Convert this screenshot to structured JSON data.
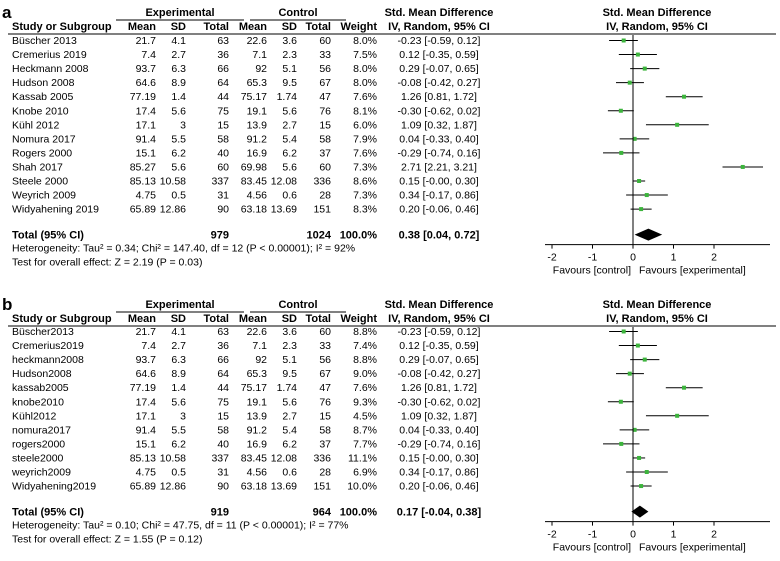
{
  "headers": {
    "group_exp": "Experimental",
    "group_ctl": "Control",
    "smd": "Std. Mean Difference",
    "method": "IV, Random, 95% CI",
    "study": "Study or Subgroup",
    "mean": "Mean",
    "sd": "SD",
    "total": "Total",
    "weight": "Weight"
  },
  "axis": {
    "ticks": [
      -2,
      -1,
      0,
      1,
      2
    ],
    "tick_labels": [
      "-2",
      "-1",
      "0",
      "1",
      "2"
    ],
    "xlim": [
      -2.6,
      2.6
    ],
    "favours_left": "Favours [control]",
    "favours_right": "Favours [experimental]"
  },
  "colors": {
    "marker": "#3cb43c",
    "line": "#000000",
    "diamond": "#000000"
  },
  "chart_data": [
    {
      "type": "forest",
      "panel": "a",
      "studies": [
        {
          "name": "Büscher 2013",
          "e_mean": "21.7",
          "e_sd": "4.1",
          "e_total": "63",
          "c_mean": "22.6",
          "c_sd": "3.6",
          "c_total": "60",
          "weight": "8.0%",
          "ci_text": "-0.23 [-0.59, 0.12]",
          "smd": -0.23,
          "lo": -0.59,
          "hi": 0.12
        },
        {
          "name": "Cremerius 2019",
          "e_mean": "7.4",
          "e_sd": "2.7",
          "e_total": "36",
          "c_mean": "7.1",
          "c_sd": "2.3",
          "c_total": "33",
          "weight": "7.5%",
          "ci_text": "0.12 [-0.35, 0.59]",
          "smd": 0.12,
          "lo": -0.35,
          "hi": 0.59
        },
        {
          "name": "Heckmann 2008",
          "e_mean": "93.7",
          "e_sd": "6.3",
          "e_total": "66",
          "c_mean": "92",
          "c_sd": "5.1",
          "c_total": "56",
          "weight": "8.0%",
          "ci_text": "0.29 [-0.07, 0.65]",
          "smd": 0.29,
          "lo": -0.07,
          "hi": 0.65
        },
        {
          "name": "Hudson 2008",
          "e_mean": "64.6",
          "e_sd": "8.9",
          "e_total": "64",
          "c_mean": "65.3",
          "c_sd": "9.5",
          "c_total": "67",
          "weight": "8.0%",
          "ci_text": "-0.08 [-0.42, 0.27]",
          "smd": -0.08,
          "lo": -0.42,
          "hi": 0.27
        },
        {
          "name": "Kassab 2005",
          "e_mean": "77.19",
          "e_sd": "1.4",
          "e_total": "44",
          "c_mean": "75.17",
          "c_sd": "1.74",
          "c_total": "47",
          "weight": "7.6%",
          "ci_text": "1.26 [0.81, 1.72]",
          "smd": 1.26,
          "lo": 0.81,
          "hi": 1.72
        },
        {
          "name": "Knobe 2010",
          "e_mean": "17.4",
          "e_sd": "5.6",
          "e_total": "75",
          "c_mean": "19.1",
          "c_sd": "5.6",
          "c_total": "76",
          "weight": "8.1%",
          "ci_text": "-0.30 [-0.62, 0.02]",
          "smd": -0.3,
          "lo": -0.62,
          "hi": 0.02
        },
        {
          "name": "Kühl 2012",
          "e_mean": "17.1",
          "e_sd": "3",
          "e_total": "15",
          "c_mean": "13.9",
          "c_sd": "2.7",
          "c_total": "15",
          "weight": "6.0%",
          "ci_text": "1.09 [0.32, 1.87]",
          "smd": 1.09,
          "lo": 0.32,
          "hi": 1.87
        },
        {
          "name": "Nomura 2017",
          "e_mean": "91.4",
          "e_sd": "5.5",
          "e_total": "58",
          "c_mean": "91.2",
          "c_sd": "5.4",
          "c_total": "58",
          "weight": "7.9%",
          "ci_text": "0.04 [-0.33, 0.40]",
          "smd": 0.04,
          "lo": -0.33,
          "hi": 0.4
        },
        {
          "name": "Rogers 2000",
          "e_mean": "15.1",
          "e_sd": "6.2",
          "e_total": "40",
          "c_mean": "16.9",
          "c_sd": "6.2",
          "c_total": "37",
          "weight": "7.6%",
          "ci_text": "-0.29 [-0.74, 0.16]",
          "smd": -0.29,
          "lo": -0.74,
          "hi": 0.16
        },
        {
          "name": "Shah 2017",
          "e_mean": "85.27",
          "e_sd": "5.6",
          "e_total": "60",
          "c_mean": "69.98",
          "c_sd": "5.6",
          "c_total": "60",
          "weight": "7.3%",
          "ci_text": "2.71 [2.21, 3.21]",
          "smd": 2.71,
          "lo": 2.21,
          "hi": 3.21
        },
        {
          "name": "Steele 2000",
          "e_mean": "85.13",
          "e_sd": "10.58",
          "e_total": "337",
          "c_mean": "83.45",
          "c_sd": "12.08",
          "c_total": "336",
          "weight": "8.6%",
          "ci_text": "0.15 [-0.00, 0.30]",
          "smd": 0.15,
          "lo": -0.0,
          "hi": 0.3
        },
        {
          "name": "Weyrich 2009",
          "e_mean": "4.75",
          "e_sd": "0.5",
          "e_total": "31",
          "c_mean": "4.56",
          "c_sd": "0.6",
          "c_total": "28",
          "weight": "7.3%",
          "ci_text": "0.34 [-0.17, 0.86]",
          "smd": 0.34,
          "lo": -0.17,
          "hi": 0.86
        },
        {
          "name": "Widyahening 2019",
          "e_mean": "65.89",
          "e_sd": "12.86",
          "e_total": "90",
          "c_mean": "63.18",
          "c_sd": "13.69",
          "c_total": "151",
          "weight": "8.3%",
          "ci_text": "0.20 [-0.06, 0.46]",
          "smd": 0.2,
          "lo": -0.06,
          "hi": 0.46
        }
      ],
      "total": {
        "label": "Total (95% CI)",
        "e_total": "979",
        "c_total": "1024",
        "weight": "100.0%",
        "ci_text": "0.38 [0.04, 0.72]",
        "smd": 0.38,
        "lo": 0.04,
        "hi": 0.72
      },
      "heterogeneity": "Heterogeneity: Tau² = 0.34; Chi² = 147.40, df = 12 (P < 0.00001); I² = 92%",
      "overall": "Test for overall effect: Z = 2.19 (P = 0.03)"
    },
    {
      "type": "forest",
      "panel": "b",
      "studies": [
        {
          "name": "Büscher2013",
          "e_mean": "21.7",
          "e_sd": "4.1",
          "e_total": "63",
          "c_mean": "22.6",
          "c_sd": "3.6",
          "c_total": "60",
          "weight": "8.8%",
          "ci_text": "-0.23 [-0.59, 0.12]",
          "smd": -0.23,
          "lo": -0.59,
          "hi": 0.12
        },
        {
          "name": "Cremerius2019",
          "e_mean": "7.4",
          "e_sd": "2.7",
          "e_total": "36",
          "c_mean": "7.1",
          "c_sd": "2.3",
          "c_total": "33",
          "weight": "7.4%",
          "ci_text": "0.12 [-0.35, 0.59]",
          "smd": 0.12,
          "lo": -0.35,
          "hi": 0.59
        },
        {
          "name": "heckmann2008",
          "e_mean": "93.7",
          "e_sd": "6.3",
          "e_total": "66",
          "c_mean": "92",
          "c_sd": "5.1",
          "c_total": "56",
          "weight": "8.8%",
          "ci_text": "0.29 [-0.07, 0.65]",
          "smd": 0.29,
          "lo": -0.07,
          "hi": 0.65
        },
        {
          "name": "Hudson2008",
          "e_mean": "64.6",
          "e_sd": "8.9",
          "e_total": "64",
          "c_mean": "65.3",
          "c_sd": "9.5",
          "c_total": "67",
          "weight": "9.0%",
          "ci_text": "-0.08 [-0.42, 0.27]",
          "smd": -0.08,
          "lo": -0.42,
          "hi": 0.27
        },
        {
          "name": "kassab2005",
          "e_mean": "77.19",
          "e_sd": "1.4",
          "e_total": "44",
          "c_mean": "75.17",
          "c_sd": "1.74",
          "c_total": "47",
          "weight": "7.6%",
          "ci_text": "1.26 [0.81, 1.72]",
          "smd": 1.26,
          "lo": 0.81,
          "hi": 1.72
        },
        {
          "name": "knobe2010",
          "e_mean": "17.4",
          "e_sd": "5.6",
          "e_total": "75",
          "c_mean": "19.1",
          "c_sd": "5.6",
          "c_total": "76",
          "weight": "9.3%",
          "ci_text": "-0.30 [-0.62, 0.02]",
          "smd": -0.3,
          "lo": -0.62,
          "hi": 0.02
        },
        {
          "name": "Kühl2012",
          "e_mean": "17.1",
          "e_sd": "3",
          "e_total": "15",
          "c_mean": "13.9",
          "c_sd": "2.7",
          "c_total": "15",
          "weight": "4.5%",
          "ci_text": "1.09 [0.32, 1.87]",
          "smd": 1.09,
          "lo": 0.32,
          "hi": 1.87
        },
        {
          "name": "nomura2017",
          "e_mean": "91.4",
          "e_sd": "5.5",
          "e_total": "58",
          "c_mean": "91.2",
          "c_sd": "5.4",
          "c_total": "58",
          "weight": "8.7%",
          "ci_text": "0.04 [-0.33, 0.40]",
          "smd": 0.04,
          "lo": -0.33,
          "hi": 0.4
        },
        {
          "name": "rogers2000",
          "e_mean": "15.1",
          "e_sd": "6.2",
          "e_total": "40",
          "c_mean": "16.9",
          "c_sd": "6.2",
          "c_total": "37",
          "weight": "7.7%",
          "ci_text": "-0.29 [-0.74, 0.16]",
          "smd": -0.29,
          "lo": -0.74,
          "hi": 0.16
        },
        {
          "name": "steele2000",
          "e_mean": "85.13",
          "e_sd": "10.58",
          "e_total": "337",
          "c_mean": "83.45",
          "c_sd": "12.08",
          "c_total": "336",
          "weight": "11.1%",
          "ci_text": "0.15 [-0.00, 0.30]",
          "smd": 0.15,
          "lo": -0.0,
          "hi": 0.3
        },
        {
          "name": "weyrich2009",
          "e_mean": "4.75",
          "e_sd": "0.5",
          "e_total": "31",
          "c_mean": "4.56",
          "c_sd": "0.6",
          "c_total": "28",
          "weight": "6.9%",
          "ci_text": "0.34 [-0.17, 0.86]",
          "smd": 0.34,
          "lo": -0.17,
          "hi": 0.86
        },
        {
          "name": "Widyahening2019",
          "e_mean": "65.89",
          "e_sd": "12.86",
          "e_total": "90",
          "c_mean": "63.18",
          "c_sd": "13.69",
          "c_total": "151",
          "weight": "10.0%",
          "ci_text": "0.20 [-0.06, 0.46]",
          "smd": 0.2,
          "lo": -0.06,
          "hi": 0.46
        }
      ],
      "total": {
        "label": "Total (95% CI)",
        "e_total": "919",
        "c_total": "964",
        "weight": "100.0%",
        "ci_text": "0.17 [-0.04, 0.38]",
        "smd": 0.17,
        "lo": -0.04,
        "hi": 0.38
      },
      "heterogeneity": "Heterogeneity: Tau² = 0.10; Chi² = 47.75, df = 11 (P < 0.00001); I² = 77%",
      "overall": "Test for overall effect: Z = 1.55 (P = 0.12)"
    }
  ]
}
